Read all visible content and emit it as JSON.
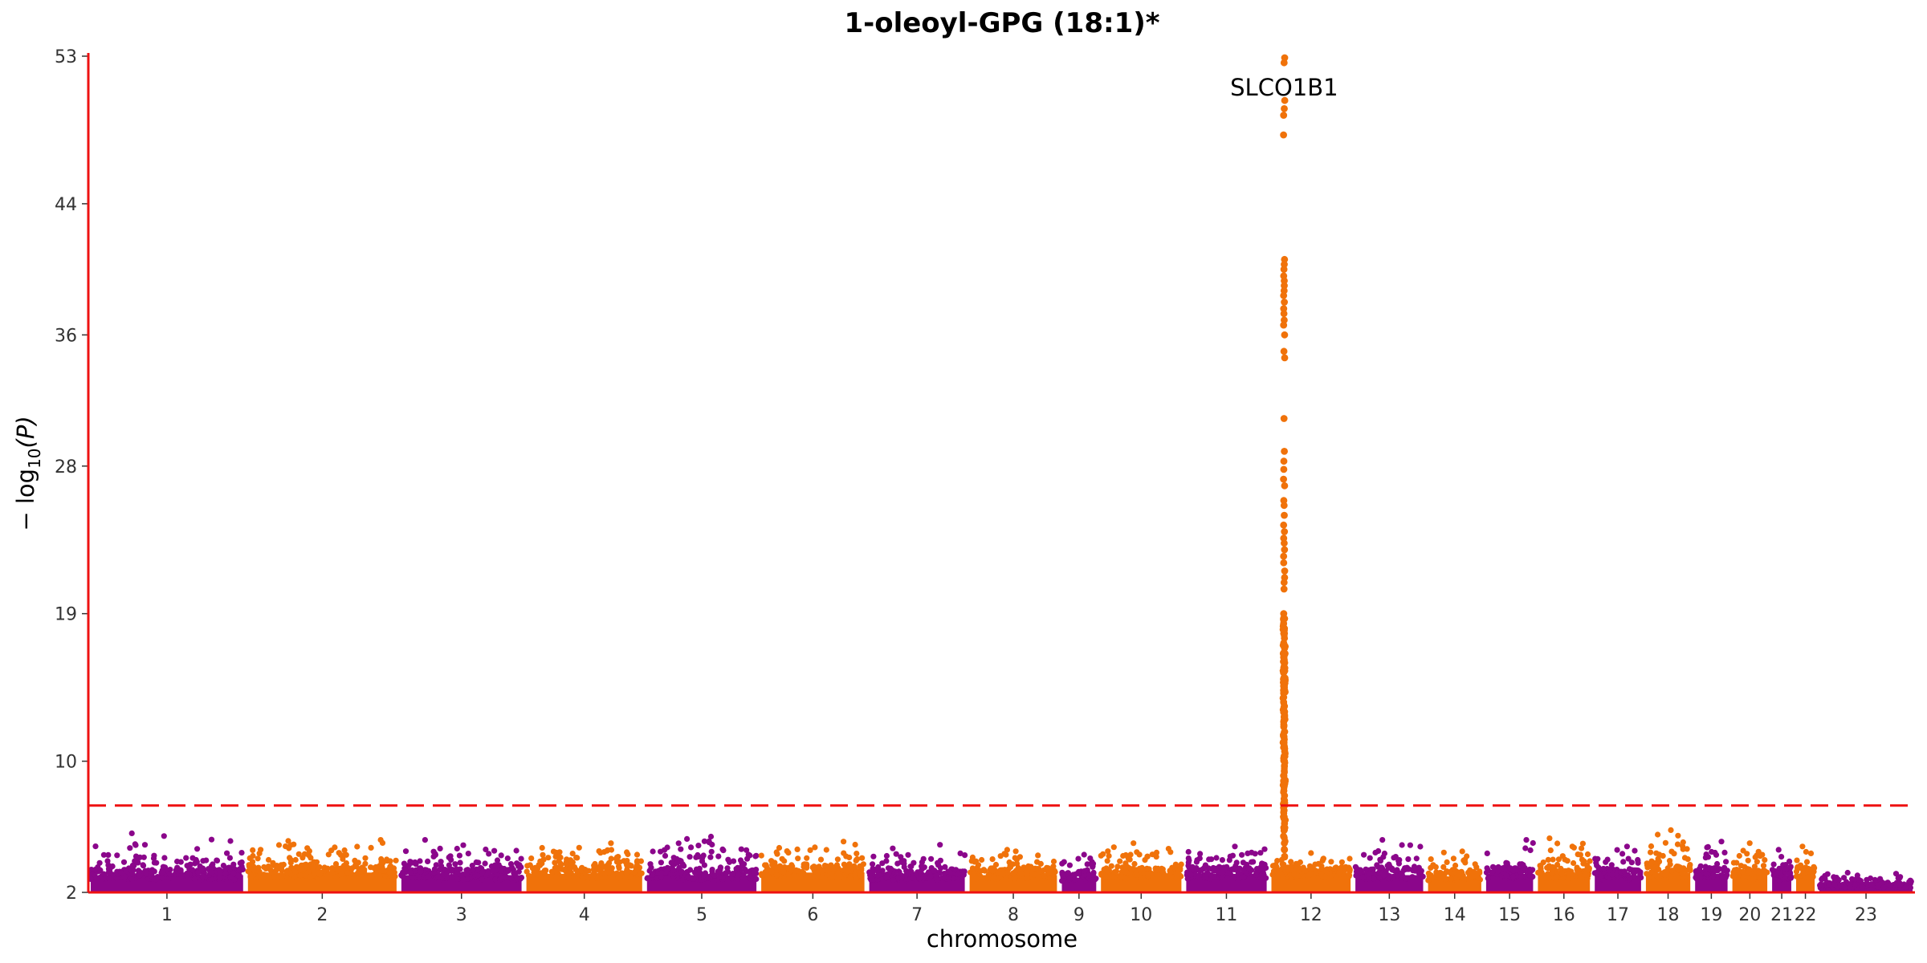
{
  "chart_data": {
    "type": "scatter",
    "subtype": "manhattan",
    "title": "1-oleoyl-GPG (18:1)*",
    "xlabel": "chromosome",
    "ylabel_main": "− log",
    "ylabel_sub": "10",
    "ylabel_var": "(P)",
    "ylim": [
      2,
      53
    ],
    "yticks": [
      2,
      10,
      19,
      28,
      36,
      44,
      53
    ],
    "threshold": 7.3,
    "threshold_color": "#ee1111",
    "axis_color": "#ee1111",
    "colors": {
      "odd": "#8b068b",
      "even": "#f0720a"
    },
    "chromosomes": [
      {
        "label": "1",
        "size": 249,
        "max": 5.6,
        "base": 3.4
      },
      {
        "label": "2",
        "size": 243,
        "max": 5.2,
        "base": 3.6
      },
      {
        "label": "3",
        "size": 198,
        "max": 5.2,
        "base": 3.4
      },
      {
        "label": "4",
        "size": 191,
        "max": 5.0,
        "base": 3.5
      },
      {
        "label": "5",
        "size": 181,
        "max": 5.4,
        "base": 3.4
      },
      {
        "label": "6",
        "size": 171,
        "max": 5.1,
        "base": 3.6
      },
      {
        "label": "7",
        "size": 159,
        "max": 4.9,
        "base": 3.3
      },
      {
        "label": "8",
        "size": 146,
        "max": 4.6,
        "base": 3.4
      },
      {
        "label": "9",
        "size": 62,
        "max": 4.3,
        "base": 3.2
      },
      {
        "label": "10",
        "size": 135,
        "max": 5.0,
        "base": 3.5
      },
      {
        "label": "11",
        "size": 135,
        "max": 4.8,
        "base": 3.5
      },
      {
        "label": "12",
        "size": 133,
        "max": 4.4,
        "base": 3.6
      },
      {
        "label": "13",
        "size": 115,
        "max": 5.2,
        "base": 3.4
      },
      {
        "label": "14",
        "size": 92,
        "max": 4.5,
        "base": 3.3
      },
      {
        "label": "15",
        "size": 82,
        "max": 5.2,
        "base": 3.5
      },
      {
        "label": "16",
        "size": 90,
        "max": 5.3,
        "base": 3.5
      },
      {
        "label": "17",
        "size": 81,
        "max": 4.8,
        "base": 3.4
      },
      {
        "label": "18",
        "size": 78,
        "max": 5.8,
        "base": 3.6
      },
      {
        "label": "19",
        "size": 59,
        "max": 5.1,
        "base": 3.5
      },
      {
        "label": "20",
        "size": 63,
        "max": 5.0,
        "base": 3.4
      },
      {
        "label": "21",
        "size": 38,
        "max": 4.6,
        "base": 3.3
      },
      {
        "label": "22",
        "size": 37,
        "max": 4.8,
        "base": 3.5
      },
      {
        "label": "23",
        "size": 155,
        "max": 3.2,
        "base": 2.5
      }
    ],
    "peak": {
      "chromosome": "12",
      "position_fraction": 0.18,
      "gene": "SLCO1B1",
      "values": [
        52.9,
        52.6,
        50.3,
        49.8,
        49.4,
        48.2,
        40.6,
        40.3,
        40.0,
        39.6,
        39.3,
        39.0,
        38.7,
        38.4,
        38.0,
        37.6,
        37.3,
        36.9,
        36.6,
        36.0,
        35.0,
        34.6,
        30.9,
        28.9,
        28.3,
        27.8,
        27.2,
        26.8,
        25.9,
        25.6,
        25.0,
        24.4,
        24.0,
        23.6,
        23.3,
        22.9,
        22.5,
        22.1,
        21.6,
        21.2,
        20.9,
        20.5,
        19.0,
        18.7,
        18.4,
        18.1,
        17.8,
        17.5,
        17.2,
        16.9,
        16.6,
        16.3,
        16.0,
        15.7,
        15.4,
        15.1,
        14.8,
        14.5,
        14.2,
        13.9,
        13.6,
        13.3,
        13.0,
        12.7,
        12.4,
        12.1,
        11.8,
        11.5,
        11.2,
        10.9,
        10.6,
        10.3,
        10.0,
        9.7,
        9.4,
        9.1,
        8.8,
        8.5,
        8.2,
        7.9,
        7.6,
        7.3,
        7.0,
        6.6,
        6.2,
        5.8,
        5.4,
        5.0,
        4.6,
        4.2
      ]
    }
  }
}
